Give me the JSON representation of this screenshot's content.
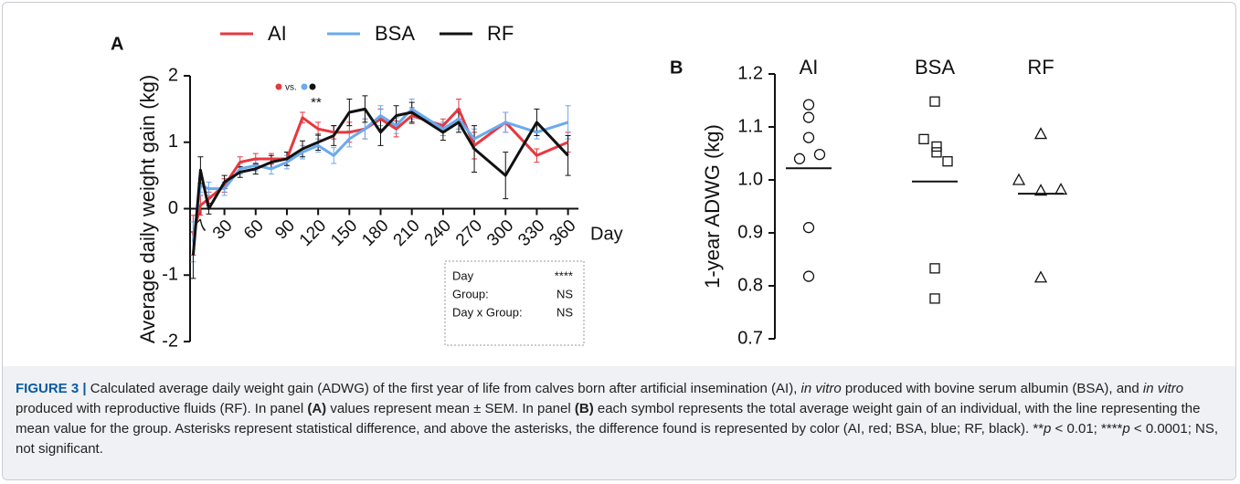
{
  "chart_data": [
    {
      "type": "line",
      "panel": "A",
      "ylabel": "Average daily weight gain (kg)",
      "xlabel": "Day",
      "x": [
        0,
        7,
        15,
        30,
        45,
        60,
        75,
        90,
        105,
        120,
        135,
        150,
        165,
        180,
        195,
        210,
        240,
        255,
        270,
        300,
        330,
        360
      ],
      "xlim": [
        -3,
        370
      ],
      "xticks": [
        7,
        30,
        60,
        90,
        120,
        150,
        180,
        210,
        240,
        270,
        300,
        330,
        360
      ],
      "ylim": [
        -2,
        2
      ],
      "yticks": [
        -2,
        -1,
        0,
        1,
        2
      ],
      "series": [
        {
          "name": "AI",
          "color": "#e8373f",
          "values": [
            -0.4,
            0.05,
            0.15,
            0.35,
            0.7,
            0.75,
            0.75,
            0.75,
            1.37,
            1.2,
            1.15,
            1.15,
            1.2,
            1.35,
            1.2,
            1.4,
            1.25,
            1.5,
            0.95,
            1.3,
            0.8,
            1.0
          ],
          "errors": [
            0.3,
            0.15,
            0.1,
            0.1,
            0.08,
            0.08,
            0.08,
            0.1,
            0.08,
            0.1,
            0.1,
            0.15,
            0.15,
            0.15,
            0.12,
            0.12,
            0.1,
            0.15,
            0.2,
            0.15,
            0.1,
            0.15
          ]
        },
        {
          "name": "BSA",
          "color": "#6aaaf0",
          "values": [
            -0.5,
            0.35,
            0.3,
            0.3,
            0.6,
            0.65,
            0.6,
            0.7,
            0.85,
            0.95,
            0.8,
            1.05,
            1.2,
            1.4,
            1.25,
            1.5,
            1.2,
            1.35,
            1.05,
            1.3,
            1.15,
            1.3
          ],
          "errors": [
            0.3,
            0.1,
            0.1,
            0.1,
            0.08,
            0.08,
            0.08,
            0.1,
            0.1,
            0.1,
            0.12,
            0.12,
            0.15,
            0.15,
            0.12,
            0.15,
            0.1,
            0.15,
            0.15,
            0.15,
            0.1,
            0.25
          ]
        },
        {
          "name": "RF",
          "color": "#111111",
          "values": [
            -0.7,
            0.58,
            0.0,
            0.4,
            0.55,
            0.6,
            0.7,
            0.75,
            0.9,
            1.0,
            1.1,
            1.45,
            1.5,
            1.15,
            1.4,
            1.45,
            1.15,
            1.3,
            0.9,
            0.5,
            1.3,
            0.8
          ],
          "errors": [
            0.35,
            0.2,
            0.08,
            0.1,
            0.08,
            0.08,
            0.1,
            0.1,
            0.12,
            0.12,
            0.15,
            0.2,
            0.2,
            0.2,
            0.15,
            0.15,
            0.12,
            0.15,
            0.35,
            0.35,
            0.2,
            0.3
          ]
        }
      ],
      "annotations": {
        "comparison": "vs.",
        "significance": "**"
      },
      "stats": [
        {
          "term": "Day",
          "result": "****"
        },
        {
          "term": "Group:",
          "result": "NS"
        },
        {
          "term": "Day x Group:",
          "result": "NS"
        }
      ]
    },
    {
      "type": "strip",
      "panel": "B",
      "ylabel": "1-year ADWG  (kg)",
      "ylim": [
        0.7,
        1.2
      ],
      "yticks": [
        0.7,
        0.8,
        0.9,
        {
          "value": 1.0,
          "label": "1.0"
        },
        1.1,
        1.2
      ],
      "series": [
        {
          "name": "AI",
          "marker": "circle",
          "values": [
            1.142,
            1.118,
            1.08,
            1.04,
            1.048,
            0.91,
            0.818
          ],
          "mean": 1.022
        },
        {
          "name": "BSA",
          "marker": "square",
          "values": [
            1.148,
            1.077,
            1.063,
            1.052,
            1.035,
            0.833,
            0.776
          ],
          "mean": 0.997
        },
        {
          "name": "RF",
          "marker": "triangle",
          "values": [
            1.087,
            1.0,
            0.98,
            0.982,
            0.816
          ],
          "mean": 0.974
        }
      ]
    }
  ],
  "caption": [
    "FIGURE 3 |",
    " Calculated average daily weight gain (ADWG) of the first year of life from calves born after artificial insemination (AI), ",
    "in vitro",
    " produced with bovine serum albumin (BSA), and ",
    "in vitro",
    " produced with reproductive fluids (RF). In panel ",
    "(A)",
    " values represent mean ± SEM. In panel ",
    "(B)",
    " each symbol represents the total average weight gain of an individual, with the line representing the mean value for the group. Asterisks represent statistical difference, and above the asterisks, the difference found is represented by color (AI, red; BSA, blue; RF, black). **",
    "p",
    " < 0.01; ****",
    "p",
    " < 0.0001; NS, not significant."
  ]
}
